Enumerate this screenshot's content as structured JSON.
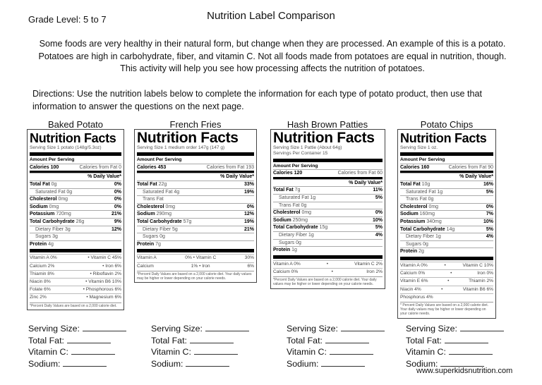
{
  "header": {
    "grade_level": "Grade Level:  5 to 7",
    "title": "Nutrition Label Comparison"
  },
  "intro": "Some foods are very healthy in their natural form, but change when they are processed.  An example of this is a potato.  Potatoes are high in carbohydrate, fiber, and vitamin C.  Not all foods made from potatoes are equal in nutrition, though.  This activity will help you see how processing affects the nutrition of potatoes.",
  "directions": "Directions: Use the nutrition labels below to complete the information for each type of potato product, then use that information to answer the questions on the next page.",
  "fill_fields": [
    "Serving Size:",
    "Total Fat:",
    "Vitamin C:",
    "Sodium:"
  ],
  "footer_url": "www.superkidsnutrition.com",
  "labels": [
    {
      "name": "Baked Potato",
      "heading": "Nutrition Facts",
      "serving": [
        "Serving Size 1 potato  (148g/5.3oz)"
      ],
      "amount_per": "Amount Per Serving",
      "calories": "Calories 100",
      "cal_fat": "Calories from Fat 0",
      "dv_header": "% Daily Value*",
      "rows": [
        [
          "Total Fat",
          "0g",
          "0%",
          0
        ],
        [
          "Saturated Fat",
          "0g",
          "0%",
          1
        ],
        [
          "Cholesterol",
          "0mg",
          "0%",
          0
        ],
        [
          "Sodium",
          "0mg",
          "0%",
          0
        ],
        [
          "Potassium",
          "720mg",
          "21%",
          0
        ],
        [
          "Total Carbohydrate",
          "26g",
          "9%",
          0
        ],
        [
          "Dietary Fiber",
          "3g",
          "12%",
          1
        ],
        [
          "Sugars",
          "3g",
          "",
          1
        ],
        [
          "Protein",
          "4g",
          "",
          0
        ]
      ],
      "vitamins": [
        [
          "Vitamin A  0%",
          "• Vitamin C 45%"
        ],
        [
          "Calcium  2%",
          "• Iron 6%"
        ],
        [
          "Thiamin  8%",
          "• Riboflavin  2%"
        ],
        [
          "Niacin  8%",
          "• Vitamin B6  10%"
        ],
        [
          "Folate  6%",
          "• Phosphorous  6%"
        ],
        [
          "Zinc  2%",
          "• Magnesium  6%"
        ]
      ],
      "footnote": "*Percent Daily Values are based on a 2,000 calorie diet."
    },
    {
      "name": "French Fries",
      "heading": "Nutrition Facts",
      "serving": [
        "Serving Size 1 medium order 147g (147 g)"
      ],
      "amount_per": "Amount Per Serving",
      "calories": "Calories 453",
      "cal_fat": "Calories from Fat 193",
      "dv_header": "% Daily Value*",
      "rows": [
        [
          "Total Fat",
          "22g",
          "33%",
          0
        ],
        [
          "Saturated Fat",
          "4g",
          "19%",
          1
        ],
        [
          "Trans Fat",
          "",
          "",
          1
        ],
        [
          "Cholesterol",
          "0mg",
          "0%",
          0
        ],
        [
          "Sodium",
          "290mg",
          "12%",
          0
        ],
        [
          "Total Carbohydrate",
          "57g",
          "19%",
          0
        ],
        [
          "Dietary Fiber",
          "5g",
          "21%",
          1
        ],
        [
          "Sugars",
          "0g",
          "",
          1
        ],
        [
          "Protein",
          "7g",
          "",
          0
        ]
      ],
      "vitamins": [
        [
          "Vitamin A",
          "0% • Vitamin C",
          "30%"
        ],
        [
          "Calcium",
          "1% • Iron",
          "6%"
        ]
      ],
      "footnote": "*Percent Daily Values are based on a 2,000 calorie diet. Your daily values may be higher or lower depending on your calorie needs."
    },
    {
      "name": "Hash Brown Patties",
      "heading": "Nutrition Facts",
      "serving": [
        "Serving Size 1 Pattie (About 64g)",
        "Servings Per Container 15"
      ],
      "amount_per": "Amount Per Serving",
      "calories": "Calories 120",
      "cal_fat": "Calories from Fat 60",
      "dv_header": "% Daily Value*",
      "rows": [
        [
          "Total Fat",
          "7g",
          "11%",
          0
        ],
        [
          "Saturated Fat",
          "1g",
          "5%",
          1
        ],
        [
          "Trans Fat",
          "0g",
          "",
          1
        ],
        [
          "Cholesterol",
          "0mg",
          "0%",
          0
        ],
        [
          "Sodium",
          "250mg",
          "10%",
          0
        ],
        [
          "Total Carbohydrate",
          "15g",
          "5%",
          0
        ],
        [
          "Dietary Fiber",
          "1g",
          "4%",
          1
        ],
        [
          "Sugars",
          "0g",
          "",
          1
        ],
        [
          "Protein",
          "1g",
          "",
          0
        ]
      ],
      "vitamins": [
        [
          "Vitamin A 0%",
          "•",
          "Vitamin C 2%"
        ],
        [
          "Calcium 0%",
          "•",
          "Iron 2%"
        ]
      ],
      "footnote": "*Percent Daily Values are based on a 2,000 calorie diet. Your daily values may be higher or lower depending on your calorie needs."
    },
    {
      "name": "Potato Chips",
      "heading": "Nutrition Facts",
      "serving": [
        "Serving Size 1 oz."
      ],
      "amount_per": "Amount Per Serving",
      "calories": "Calories 160",
      "cal_fat": "Calories from Fat 90",
      "dv_header": "% Daily Value*",
      "rows": [
        [
          "Total Fat",
          "10g",
          "16%",
          0
        ],
        [
          "Saturated Fat",
          "1g",
          "5%",
          1
        ],
        [
          "Trans Fat",
          "0g",
          "",
          1
        ],
        [
          "Cholesterol",
          "0mg",
          "0%",
          0
        ],
        [
          "Sodium",
          "160mg",
          "7%",
          0
        ],
        [
          "Potassium",
          "340mg",
          "10%",
          0
        ],
        [
          "Total Carbohydrate",
          "14g",
          "5%",
          0
        ],
        [
          "Dietary Fiber",
          "1g",
          "4%",
          1
        ],
        [
          "Sugars",
          "0g",
          "",
          1
        ],
        [
          "Protein",
          "2g",
          "",
          0
        ]
      ],
      "vitamins": [
        [
          "Vitamin A 0%",
          "•",
          "Vitamin C 10%"
        ],
        [
          "Calcium 0%",
          "•",
          "Iron 0%"
        ],
        [
          "Vitamin E 6%",
          "•",
          "Thiamin 2%"
        ],
        [
          "Niacin 4%",
          "•",
          "Vitamin B6 6%"
        ],
        [
          "Phosphorus 4%"
        ]
      ],
      "footnote": "* Percent Daily Values are based on a 2,000 calorie diet. Your daily values may be higher or lower depending on your calorie needs."
    }
  ]
}
